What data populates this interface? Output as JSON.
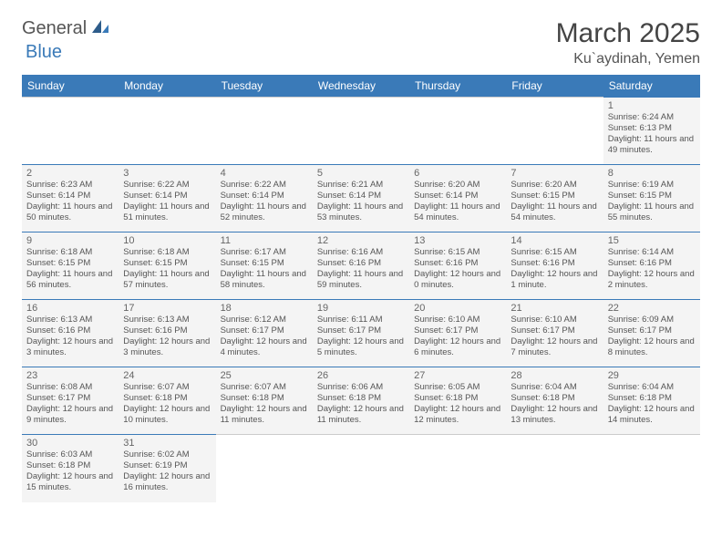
{
  "logo": {
    "part1": "General",
    "part2": "Blue"
  },
  "title": "March 2025",
  "location": "Ku`aydinah, Yemen",
  "colors": {
    "headerBg": "#3a7ab8",
    "cellBg": "#f4f4f4",
    "cellBorder": "#3a7ab8",
    "textMain": "#555555"
  },
  "weekdays": [
    "Sunday",
    "Monday",
    "Tuesday",
    "Wednesday",
    "Thursday",
    "Friday",
    "Saturday"
  ],
  "layout": {
    "firstDayOffset": 6,
    "totalDays": 31
  },
  "days": {
    "1": {
      "sunrise": "6:24 AM",
      "sunset": "6:13 PM",
      "daylight": "11 hours and 49 minutes."
    },
    "2": {
      "sunrise": "6:23 AM",
      "sunset": "6:14 PM",
      "daylight": "11 hours and 50 minutes."
    },
    "3": {
      "sunrise": "6:22 AM",
      "sunset": "6:14 PM",
      "daylight": "11 hours and 51 minutes."
    },
    "4": {
      "sunrise": "6:22 AM",
      "sunset": "6:14 PM",
      "daylight": "11 hours and 52 minutes."
    },
    "5": {
      "sunrise": "6:21 AM",
      "sunset": "6:14 PM",
      "daylight": "11 hours and 53 minutes."
    },
    "6": {
      "sunrise": "6:20 AM",
      "sunset": "6:14 PM",
      "daylight": "11 hours and 54 minutes."
    },
    "7": {
      "sunrise": "6:20 AM",
      "sunset": "6:15 PM",
      "daylight": "11 hours and 54 minutes."
    },
    "8": {
      "sunrise": "6:19 AM",
      "sunset": "6:15 PM",
      "daylight": "11 hours and 55 minutes."
    },
    "9": {
      "sunrise": "6:18 AM",
      "sunset": "6:15 PM",
      "daylight": "11 hours and 56 minutes."
    },
    "10": {
      "sunrise": "6:18 AM",
      "sunset": "6:15 PM",
      "daylight": "11 hours and 57 minutes."
    },
    "11": {
      "sunrise": "6:17 AM",
      "sunset": "6:15 PM",
      "daylight": "11 hours and 58 minutes."
    },
    "12": {
      "sunrise": "6:16 AM",
      "sunset": "6:16 PM",
      "daylight": "11 hours and 59 minutes."
    },
    "13": {
      "sunrise": "6:15 AM",
      "sunset": "6:16 PM",
      "daylight": "12 hours and 0 minutes."
    },
    "14": {
      "sunrise": "6:15 AM",
      "sunset": "6:16 PM",
      "daylight": "12 hours and 1 minute."
    },
    "15": {
      "sunrise": "6:14 AM",
      "sunset": "6:16 PM",
      "daylight": "12 hours and 2 minutes."
    },
    "16": {
      "sunrise": "6:13 AM",
      "sunset": "6:16 PM",
      "daylight": "12 hours and 3 minutes."
    },
    "17": {
      "sunrise": "6:13 AM",
      "sunset": "6:16 PM",
      "daylight": "12 hours and 3 minutes."
    },
    "18": {
      "sunrise": "6:12 AM",
      "sunset": "6:17 PM",
      "daylight": "12 hours and 4 minutes."
    },
    "19": {
      "sunrise": "6:11 AM",
      "sunset": "6:17 PM",
      "daylight": "12 hours and 5 minutes."
    },
    "20": {
      "sunrise": "6:10 AM",
      "sunset": "6:17 PM",
      "daylight": "12 hours and 6 minutes."
    },
    "21": {
      "sunrise": "6:10 AM",
      "sunset": "6:17 PM",
      "daylight": "12 hours and 7 minutes."
    },
    "22": {
      "sunrise": "6:09 AM",
      "sunset": "6:17 PM",
      "daylight": "12 hours and 8 minutes."
    },
    "23": {
      "sunrise": "6:08 AM",
      "sunset": "6:17 PM",
      "daylight": "12 hours and 9 minutes."
    },
    "24": {
      "sunrise": "6:07 AM",
      "sunset": "6:18 PM",
      "daylight": "12 hours and 10 minutes."
    },
    "25": {
      "sunrise": "6:07 AM",
      "sunset": "6:18 PM",
      "daylight": "12 hours and 11 minutes."
    },
    "26": {
      "sunrise": "6:06 AM",
      "sunset": "6:18 PM",
      "daylight": "12 hours and 11 minutes."
    },
    "27": {
      "sunrise": "6:05 AM",
      "sunset": "6:18 PM",
      "daylight": "12 hours and 12 minutes."
    },
    "28": {
      "sunrise": "6:04 AM",
      "sunset": "6:18 PM",
      "daylight": "12 hours and 13 minutes."
    },
    "29": {
      "sunrise": "6:04 AM",
      "sunset": "6:18 PM",
      "daylight": "12 hours and 14 minutes."
    },
    "30": {
      "sunrise": "6:03 AM",
      "sunset": "6:18 PM",
      "daylight": "12 hours and 15 minutes."
    },
    "31": {
      "sunrise": "6:02 AM",
      "sunset": "6:19 PM",
      "daylight": "12 hours and 16 minutes."
    }
  },
  "labels": {
    "sunrise": "Sunrise:",
    "sunset": "Sunset:",
    "daylight": "Daylight:"
  }
}
